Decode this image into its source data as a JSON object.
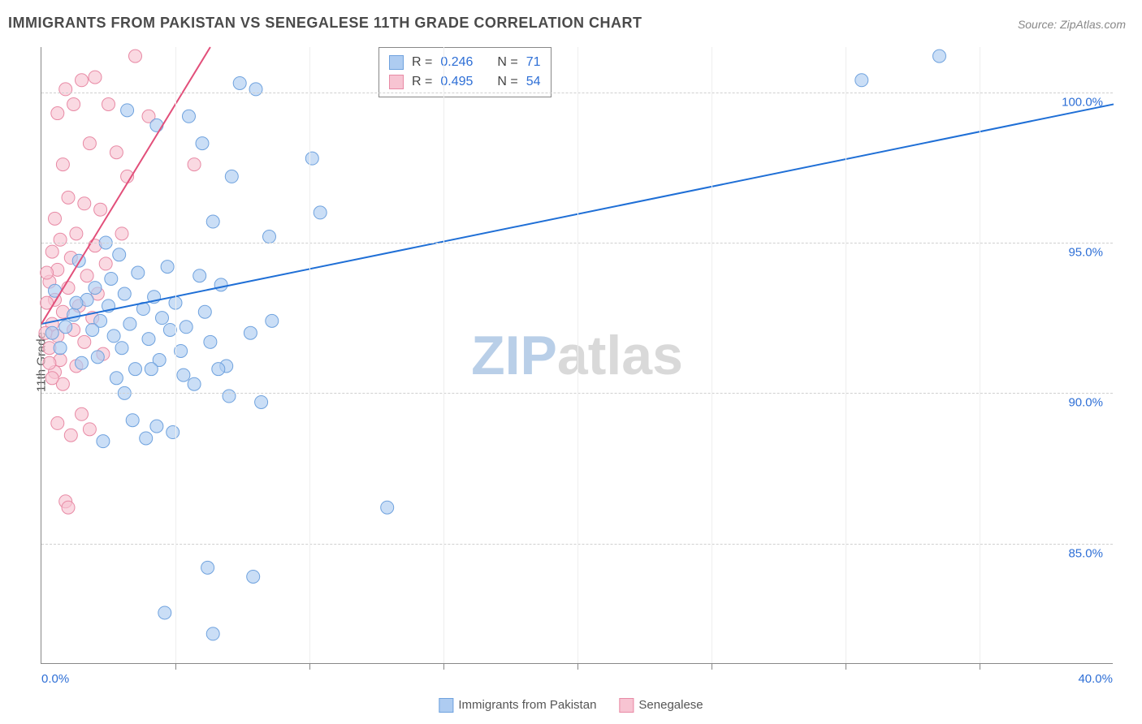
{
  "title": "IMMIGRANTS FROM PAKISTAN VS SENEGALESE 11TH GRADE CORRELATION CHART",
  "source": "Source: ZipAtlas.com",
  "ylabel": "11th Grade",
  "watermark": {
    "zip": "ZIP",
    "atlas": "atlas",
    "zip_color": "#b9cfe8",
    "atlas_color": "#d9d9d9"
  },
  "chart": {
    "type": "scatter",
    "xlim": [
      0,
      40
    ],
    "ylim": [
      81,
      101.5
    ],
    "x_ticks_major": [
      0,
      40
    ],
    "x_ticks_minor": [
      5,
      10,
      15,
      20,
      25,
      30,
      35
    ],
    "x_tick_labels": [
      "0.0%",
      "40.0%"
    ],
    "y_ticks": [
      85,
      90,
      95,
      100
    ],
    "y_tick_labels": [
      "85.0%",
      "90.0%",
      "95.0%",
      "100.0%"
    ],
    "grid_color": "#d0d0d0",
    "axis_color": "#888888",
    "background_color": "#ffffff",
    "series": [
      {
        "name": "Immigrants from Pakistan",
        "color_fill": "#aeccf1",
        "color_stroke": "#6fa2de",
        "marker_radius": 8,
        "regression": {
          "x1": 0,
          "y1": 92.3,
          "x2": 40,
          "y2": 99.6,
          "color": "#1f6fd6",
          "width": 2
        },
        "R": "0.246",
        "N": "71",
        "points": [
          [
            33.5,
            101.2
          ],
          [
            30.6,
            100.4
          ],
          [
            7.4,
            100.3
          ],
          [
            8.0,
            100.1
          ],
          [
            3.2,
            99.4
          ],
          [
            5.5,
            99.2
          ],
          [
            4.3,
            98.9
          ],
          [
            6.0,
            98.3
          ],
          [
            10.1,
            97.8
          ],
          [
            7.1,
            97.2
          ],
          [
            10.4,
            96.0
          ],
          [
            6.4,
            95.7
          ],
          [
            8.5,
            95.2
          ],
          [
            2.4,
            95.0
          ],
          [
            2.9,
            94.6
          ],
          [
            1.4,
            94.4
          ],
          [
            4.7,
            94.2
          ],
          [
            3.6,
            94.0
          ],
          [
            5.9,
            93.9
          ],
          [
            6.7,
            93.6
          ],
          [
            2.0,
            93.5
          ],
          [
            3.1,
            93.3
          ],
          [
            4.2,
            93.2
          ],
          [
            1.7,
            93.1
          ],
          [
            5.0,
            93.0
          ],
          [
            2.5,
            92.9
          ],
          [
            3.8,
            92.8
          ],
          [
            6.1,
            92.7
          ],
          [
            1.2,
            92.6
          ],
          [
            4.5,
            92.5
          ],
          [
            2.2,
            92.4
          ],
          [
            3.3,
            92.3
          ],
          [
            5.4,
            92.2
          ],
          [
            1.9,
            92.1
          ],
          [
            7.8,
            92.0
          ],
          [
            2.7,
            91.9
          ],
          [
            4.0,
            91.8
          ],
          [
            6.3,
            91.7
          ],
          [
            3.0,
            91.5
          ],
          [
            5.2,
            91.4
          ],
          [
            2.1,
            91.2
          ],
          [
            4.4,
            91.1
          ],
          [
            1.5,
            91.0
          ],
          [
            6.9,
            90.9
          ],
          [
            3.5,
            90.8
          ],
          [
            8.6,
            92.4
          ],
          [
            2.8,
            90.5
          ],
          [
            5.7,
            90.3
          ],
          [
            4.8,
            92.1
          ],
          [
            4.1,
            90.8
          ],
          [
            6.6,
            90.8
          ],
          [
            3.4,
            89.1
          ],
          [
            5.3,
            90.6
          ],
          [
            7.0,
            89.9
          ],
          [
            8.2,
            89.7
          ],
          [
            4.9,
            88.7
          ],
          [
            2.3,
            88.4
          ],
          [
            3.9,
            88.5
          ],
          [
            12.9,
            86.2
          ],
          [
            6.2,
            84.2
          ],
          [
            7.9,
            83.9
          ],
          [
            4.6,
            82.7
          ],
          [
            6.4,
            82.0
          ],
          [
            4.3,
            88.9
          ],
          [
            3.1,
            90.0
          ],
          [
            2.6,
            93.8
          ],
          [
            1.3,
            93.0
          ],
          [
            0.9,
            92.2
          ],
          [
            0.7,
            91.5
          ],
          [
            0.5,
            93.4
          ],
          [
            0.4,
            92.0
          ]
        ]
      },
      {
        "name": "Senegalese",
        "color_fill": "#f7c4d2",
        "color_stroke": "#e88aa5",
        "marker_radius": 8,
        "regression": {
          "x1": 0,
          "y1": 92.3,
          "x2": 6.3,
          "y2": 101.5,
          "color": "#e24f7a",
          "width": 2
        },
        "R": "0.495",
        "N": "54",
        "points": [
          [
            3.5,
            101.2
          ],
          [
            2.0,
            100.5
          ],
          [
            1.5,
            100.4
          ],
          [
            0.9,
            100.1
          ],
          [
            0.6,
            99.3
          ],
          [
            2.5,
            99.6
          ],
          [
            1.2,
            99.6
          ],
          [
            4.0,
            99.2
          ],
          [
            1.8,
            98.3
          ],
          [
            2.8,
            98.0
          ],
          [
            0.8,
            97.6
          ],
          [
            3.2,
            97.2
          ],
          [
            5.7,
            97.6
          ],
          [
            1.0,
            96.5
          ],
          [
            1.6,
            96.3
          ],
          [
            2.2,
            96.1
          ],
          [
            0.5,
            95.8
          ],
          [
            3.0,
            95.3
          ],
          [
            1.3,
            95.3
          ],
          [
            0.7,
            95.1
          ],
          [
            2.0,
            94.9
          ],
          [
            0.4,
            94.7
          ],
          [
            1.1,
            94.5
          ],
          [
            2.4,
            94.3
          ],
          [
            0.6,
            94.1
          ],
          [
            1.7,
            93.9
          ],
          [
            0.3,
            93.7
          ],
          [
            1.0,
            93.5
          ],
          [
            2.1,
            93.3
          ],
          [
            0.5,
            93.1
          ],
          [
            1.4,
            92.9
          ],
          [
            0.8,
            92.7
          ],
          [
            1.9,
            92.5
          ],
          [
            0.4,
            92.3
          ],
          [
            1.2,
            92.1
          ],
          [
            0.6,
            91.9
          ],
          [
            1.6,
            91.7
          ],
          [
            0.3,
            91.5
          ],
          [
            2.3,
            91.3
          ],
          [
            0.7,
            91.1
          ],
          [
            1.3,
            90.9
          ],
          [
            0.5,
            90.7
          ],
          [
            0.8,
            90.3
          ],
          [
            1.5,
            89.3
          ],
          [
            0.6,
            89.0
          ],
          [
            1.8,
            88.8
          ],
          [
            0.4,
            90.5
          ],
          [
            1.1,
            88.6
          ],
          [
            0.9,
            86.4
          ],
          [
            1.0,
            86.2
          ],
          [
            0.3,
            91.0
          ],
          [
            0.2,
            93.0
          ],
          [
            0.2,
            94.0
          ],
          [
            0.15,
            92.0
          ]
        ]
      }
    ]
  },
  "r_legend_labels": {
    "R": "R =",
    "N": "N ="
  },
  "x_legend": [
    {
      "label": "Immigrants from Pakistan",
      "fill": "#aeccf1",
      "stroke": "#6fa2de"
    },
    {
      "label": "Senegalese",
      "fill": "#f7c4d2",
      "stroke": "#e88aa5"
    }
  ]
}
